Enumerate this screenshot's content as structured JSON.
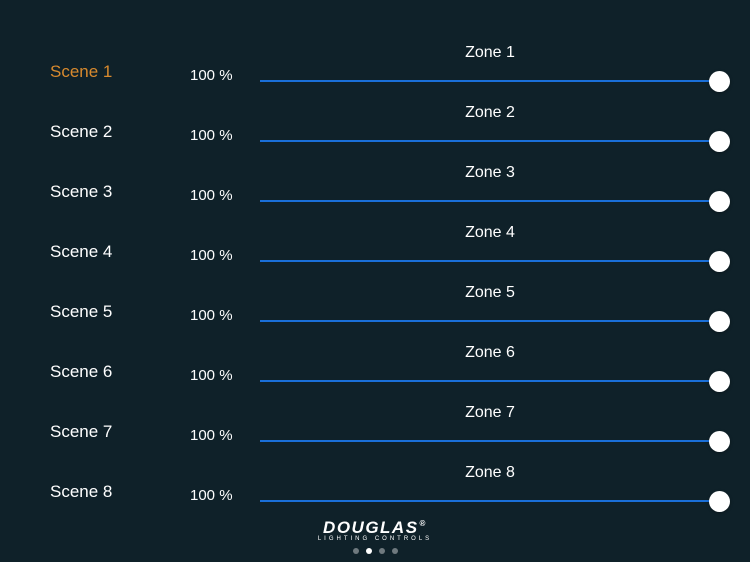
{
  "colors": {
    "background": "#0f2129",
    "text": "#ffffff",
    "selected": "#d88a2e",
    "slider_track": "#1a6fd8",
    "slider_thumb": "#ffffff"
  },
  "typography": {
    "scene_fontsize": 17,
    "percent_fontsize": 15,
    "zone_fontsize": 16
  },
  "rows": [
    {
      "scene": "Scene 1",
      "percent": "100 %",
      "zone": "Zone 1",
      "value": 100,
      "selected": true
    },
    {
      "scene": "Scene 2",
      "percent": "100 %",
      "zone": "Zone 2",
      "value": 100,
      "selected": false
    },
    {
      "scene": "Scene 3",
      "percent": "100 %",
      "zone": "Zone 3",
      "value": 100,
      "selected": false
    },
    {
      "scene": "Scene 4",
      "percent": "100 %",
      "zone": "Zone 4",
      "value": 100,
      "selected": false
    },
    {
      "scene": "Scene 5",
      "percent": "100 %",
      "zone": "Zone 5",
      "value": 100,
      "selected": false
    },
    {
      "scene": "Scene 6",
      "percent": "100 %",
      "zone": "Zone 6",
      "value": 100,
      "selected": false
    },
    {
      "scene": "Scene 7",
      "percent": "100 %",
      "zone": "Zone 7",
      "value": 100,
      "selected": false
    },
    {
      "scene": "Scene 8",
      "percent": "100 %",
      "zone": "Zone 8",
      "value": 100,
      "selected": false
    }
  ],
  "brand": {
    "main": "DOUGLAS",
    "reg": "®",
    "sub": "LIGHTING CONTROLS"
  },
  "pagination": {
    "total": 4,
    "active_index": 1
  }
}
